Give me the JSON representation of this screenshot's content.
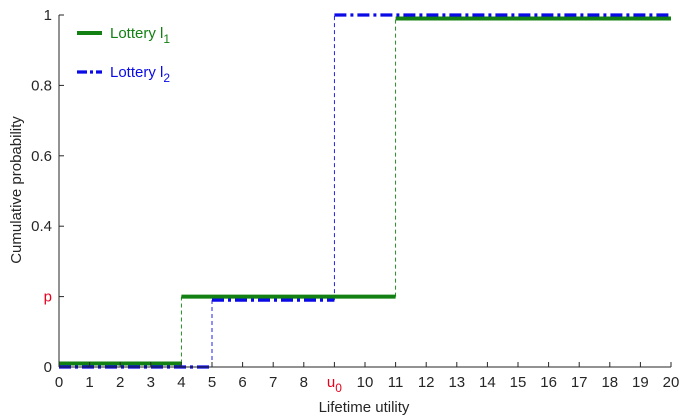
{
  "chart_data": {
    "type": "line",
    "step": true,
    "xlabel": "Lifetime utility",
    "ylabel": "Cumulative probability",
    "xlim": [
      0,
      20
    ],
    "ylim": [
      0,
      1
    ],
    "x_ticks": [
      {
        "value": 0,
        "label": "0"
      },
      {
        "value": 1,
        "label": "1"
      },
      {
        "value": 2,
        "label": "2"
      },
      {
        "value": 3,
        "label": "3"
      },
      {
        "value": 4,
        "label": "4"
      },
      {
        "value": 5,
        "label": "5"
      },
      {
        "value": 6,
        "label": "6"
      },
      {
        "value": 7,
        "label": "7"
      },
      {
        "value": 8,
        "label": "8"
      },
      {
        "value": 9,
        "label": "u",
        "sub": "0",
        "highlight": true
      },
      {
        "value": 10,
        "label": "10"
      },
      {
        "value": 11,
        "label": "11"
      },
      {
        "value": 12,
        "label": "12"
      },
      {
        "value": 13,
        "label": "13"
      },
      {
        "value": 14,
        "label": "14"
      },
      {
        "value": 15,
        "label": "15"
      },
      {
        "value": 16,
        "label": "16"
      },
      {
        "value": 17,
        "label": "17"
      },
      {
        "value": 18,
        "label": "18"
      },
      {
        "value": 19,
        "label": "19"
      },
      {
        "value": 20,
        "label": "20"
      }
    ],
    "y_ticks": [
      {
        "value": 0,
        "label": "0"
      },
      {
        "value": 0.2,
        "label": "p",
        "highlight": true
      },
      {
        "value": 0.4,
        "label": "0.4"
      },
      {
        "value": 0.6,
        "label": "0.6"
      },
      {
        "value": 0.8,
        "label": "0.8"
      },
      {
        "value": 1,
        "label": "1"
      }
    ],
    "highlight_color": "#e8001c",
    "legend_position": "top-left",
    "series": [
      {
        "name": "Lottery l",
        "name_sub": "1",
        "color": "#128012",
        "style": "solid",
        "connector_style": "dashed",
        "segments": [
          {
            "x0": 0,
            "x1": 4,
            "y": 0.01
          },
          {
            "x0": 4,
            "x1": 11,
            "y": 0.2
          },
          {
            "x0": 11,
            "x1": 20,
            "y": 0.99
          }
        ]
      },
      {
        "name": "Lottery l",
        "name_sub": "2",
        "color": "#0a0ae6",
        "style": "dashdot",
        "connector_style": "dashed",
        "segments": [
          {
            "x0": 0,
            "x1": 5,
            "y": 0.0
          },
          {
            "x0": 5,
            "x1": 9,
            "y": 0.19
          },
          {
            "x0": 9,
            "x1": 20,
            "y": 1.0
          }
        ]
      }
    ]
  }
}
